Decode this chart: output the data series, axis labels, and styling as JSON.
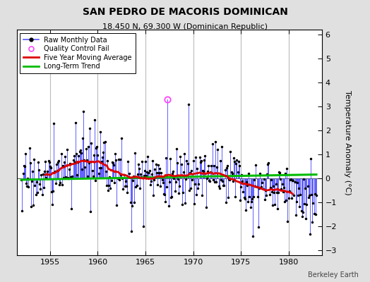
{
  "title": "SAN PEDRO DE MACORIS DOMINICAN",
  "subtitle": "18.450 N, 69.300 W (Dominican Republic)",
  "ylabel": "Temperature Anomaly (°C)",
  "credit": "Berkeley Earth",
  "xlim": [
    1951.5,
    1983.5
  ],
  "ylim": [
    -3.2,
    6.2
  ],
  "yticks": [
    -3,
    -2,
    -1,
    0,
    1,
    2,
    3,
    4,
    5,
    6
  ],
  "xticks": [
    1955,
    1960,
    1965,
    1970,
    1975,
    1980
  ],
  "bg_color": "#e0e0e0",
  "plot_bg_color": "#ffffff",
  "raw_line_color": "#5555ff",
  "raw_dot_color": "#000000",
  "ma_color": "#dd0000",
  "trend_color": "#00bb00",
  "qc_fail_color": "#ff44ff",
  "grid_color": "#bbbbbb",
  "title_fontsize": 10,
  "subtitle_fontsize": 8,
  "ylabel_fontsize": 8,
  "tick_labelsize": 8
}
